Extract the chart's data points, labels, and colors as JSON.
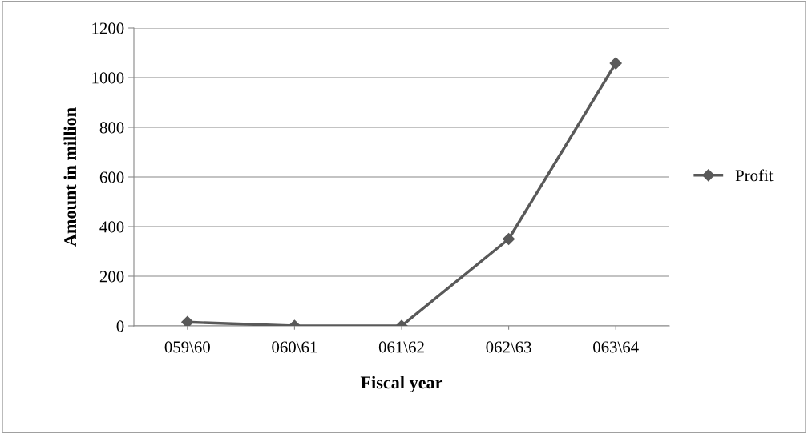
{
  "chart_data": {
    "type": "line",
    "xlabel": "Fiscal year",
    "ylabel": "Amount in million",
    "categories": [
      "059\\60",
      "060\\61",
      "061\\62",
      "062\\63",
      "063\\64"
    ],
    "series": [
      {
        "name": "Profit",
        "color": "#595959",
        "values": [
          15,
          0,
          0,
          350,
          1058
        ]
      }
    ],
    "ylim": [
      0,
      1200
    ],
    "yticks": [
      0,
      200,
      400,
      600,
      800,
      1000,
      1200
    ],
    "grid": "y",
    "legend": "right",
    "marker": "diamond",
    "line_style": "solid"
  }
}
